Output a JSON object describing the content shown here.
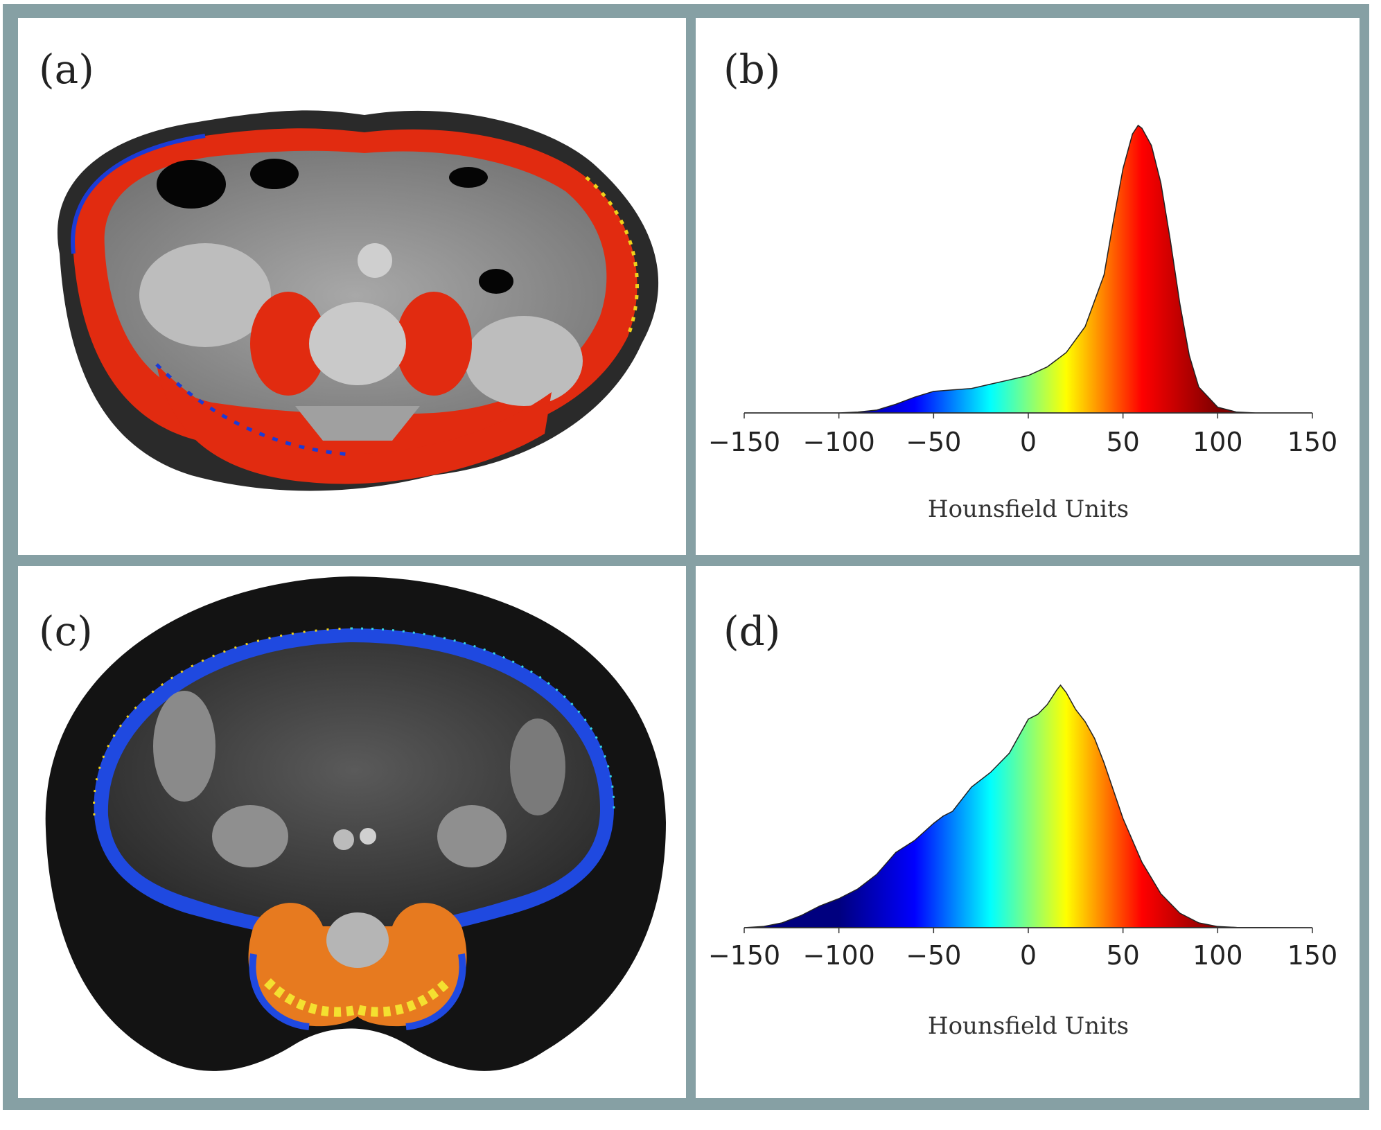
{
  "panels": {
    "a": {
      "label": "(a)"
    },
    "b": {
      "label": "(b)"
    },
    "c": {
      "label": "(c)"
    },
    "d": {
      "label": "(d)"
    }
  },
  "colors": {
    "frame": "#86a0a4",
    "ct_background": "#111111",
    "colormap": [
      "#00007f",
      "#0000ff",
      "#00ffff",
      "#ffff00",
      "#ff0000",
      "#7f0000"
    ]
  },
  "chart_data": [
    {
      "panel": "b",
      "type": "area",
      "xlabel": "Hounsfield Units",
      "ylabel": "",
      "xlim": [
        -150,
        150
      ],
      "xticks": [
        -150,
        -100,
        -50,
        0,
        50,
        100,
        150
      ],
      "tick_labels": [
        "−150",
        "−100",
        "−50",
        "0",
        "50",
        "100",
        "150"
      ],
      "ylim": [
        0,
        1
      ],
      "x": [
        -150,
        -120,
        -100,
        -90,
        -80,
        -70,
        -60,
        -50,
        -40,
        -30,
        -20,
        -10,
        0,
        10,
        20,
        30,
        40,
        45,
        50,
        55,
        58,
        60,
        65,
        70,
        75,
        80,
        85,
        90,
        100,
        110,
        120,
        150
      ],
      "y": [
        0,
        0,
        0,
        0.003,
        0.01,
        0.03,
        0.055,
        0.075,
        0.08,
        0.085,
        0.1,
        0.115,
        0.13,
        0.16,
        0.21,
        0.3,
        0.48,
        0.67,
        0.85,
        0.97,
        1.0,
        0.99,
        0.93,
        0.8,
        0.6,
        0.38,
        0.2,
        0.09,
        0.02,
        0.003,
        0,
        0
      ]
    },
    {
      "panel": "d",
      "type": "area",
      "xlabel": "Hounsfield Units",
      "ylabel": "",
      "xlim": [
        -150,
        150
      ],
      "xticks": [
        -150,
        -100,
        -50,
        0,
        50,
        100,
        150
      ],
      "tick_labels": [
        "−150",
        "−100",
        "−50",
        "0",
        "50",
        "100",
        "150"
      ],
      "ylim": [
        0,
        1
      ],
      "x": [
        -150,
        -140,
        -130,
        -120,
        -110,
        -100,
        -90,
        -80,
        -70,
        -60,
        -50,
        -45,
        -40,
        -30,
        -20,
        -10,
        0,
        5,
        10,
        15,
        17,
        20,
        25,
        30,
        35,
        40,
        50,
        60,
        70,
        80,
        90,
        100,
        110,
        150
      ],
      "y": [
        0,
        0.005,
        0.02,
        0.05,
        0.09,
        0.12,
        0.16,
        0.22,
        0.31,
        0.36,
        0.43,
        0.46,
        0.48,
        0.58,
        0.64,
        0.72,
        0.86,
        0.88,
        0.92,
        0.98,
        1.0,
        0.97,
        0.9,
        0.85,
        0.78,
        0.68,
        0.45,
        0.27,
        0.14,
        0.06,
        0.02,
        0.005,
        0.001,
        0
      ]
    }
  ]
}
